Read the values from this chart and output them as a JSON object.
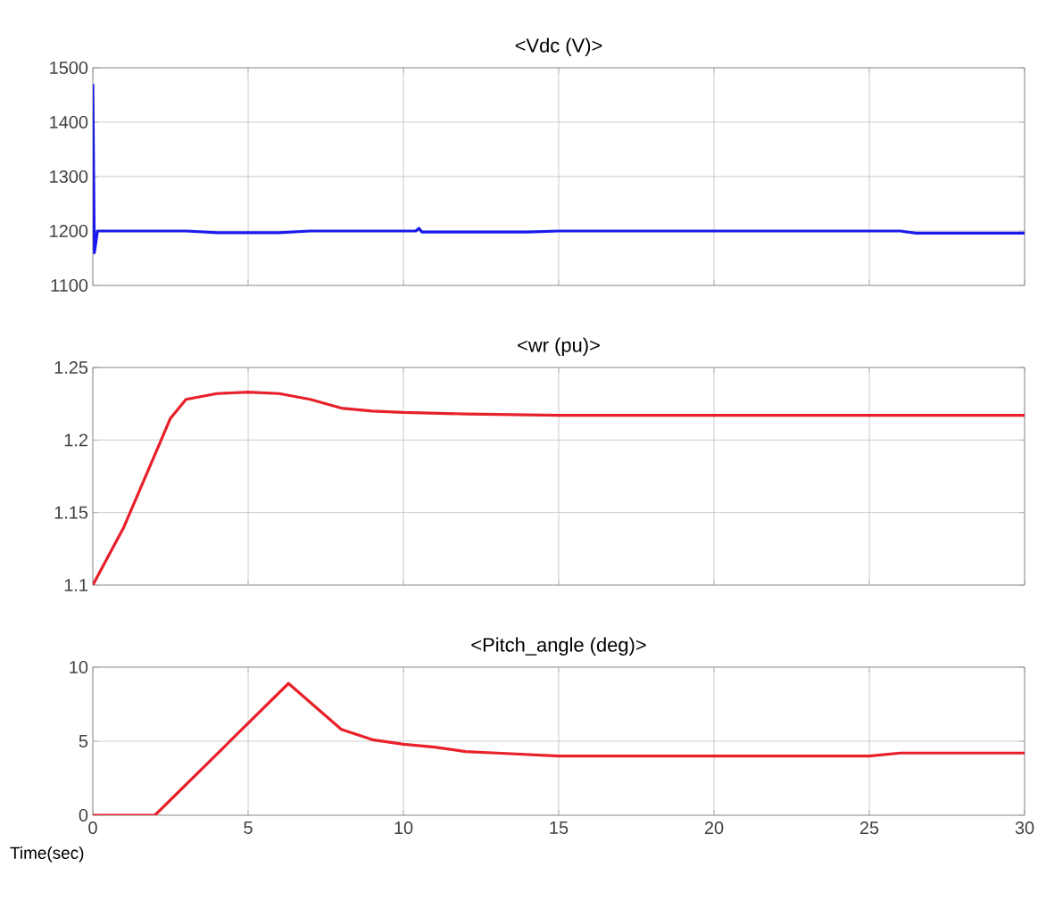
{
  "chart_data": [
    {
      "type": "line",
      "title": "<Vdc (V)>",
      "x": [
        0,
        0.05,
        0.15,
        3,
        4,
        6,
        7,
        10.4,
        10.5,
        10.6,
        14,
        15,
        26,
        26.5,
        30
      ],
      "series": [
        {
          "color": "#1a1aee",
          "values": [
            1470,
            1160,
            1200,
            1200,
            1197,
            1197,
            1200,
            1200,
            1205,
            1198,
            1198,
            1200,
            1200,
            1196,
            1196
          ]
        }
      ],
      "xlim": [
        0,
        30
      ],
      "xticks": [
        0,
        5,
        10,
        15,
        20,
        25,
        30
      ],
      "ylim": [
        1100,
        1500
      ],
      "yticks": [
        1100,
        1200,
        1300,
        1400,
        1500
      ],
      "grid": true,
      "tick_labels": "y",
      "marker": "none",
      "line_style": "solid"
    },
    {
      "type": "line",
      "title": "<wr (pu)>",
      "x": [
        0,
        1,
        2,
        2.5,
        3,
        4,
        5,
        6,
        7,
        8,
        9,
        10,
        12,
        15,
        30
      ],
      "series": [
        {
          "color": "#e8202a",
          "values": [
            1.1,
            1.14,
            1.19,
            1.215,
            1.228,
            1.232,
            1.233,
            1.232,
            1.228,
            1.222,
            1.22,
            1.219,
            1.218,
            1.217,
            1.217
          ]
        }
      ],
      "xlim": [
        0,
        30
      ],
      "xticks": [
        0,
        5,
        10,
        15,
        20,
        25,
        30
      ],
      "ylim": [
        1.1,
        1.25
      ],
      "yticks": [
        1.1,
        1.15,
        1.2,
        1.25
      ],
      "grid": true,
      "tick_labels": "y",
      "marker": "none",
      "line_style": "solid"
    },
    {
      "type": "line",
      "title": "<Pitch_angle (deg)>",
      "xlabel": "Time(sec)",
      "x": [
        0,
        2,
        6.3,
        8,
        9,
        10,
        11,
        12,
        13,
        15,
        25,
        26,
        30
      ],
      "series": [
        {
          "color": "#e8202a",
          "values": [
            0,
            0,
            8.9,
            5.8,
            5.1,
            4.8,
            4.6,
            4.3,
            4.2,
            4.0,
            4.0,
            4.2,
            4.2
          ]
        }
      ],
      "xlim": [
        0,
        30
      ],
      "xticks": [
        0,
        5,
        10,
        15,
        20,
        25,
        30
      ],
      "ylim": [
        0,
        10
      ],
      "yticks": [
        0,
        5,
        10
      ],
      "grid": true,
      "marker": "none",
      "line_style": "solid"
    }
  ]
}
